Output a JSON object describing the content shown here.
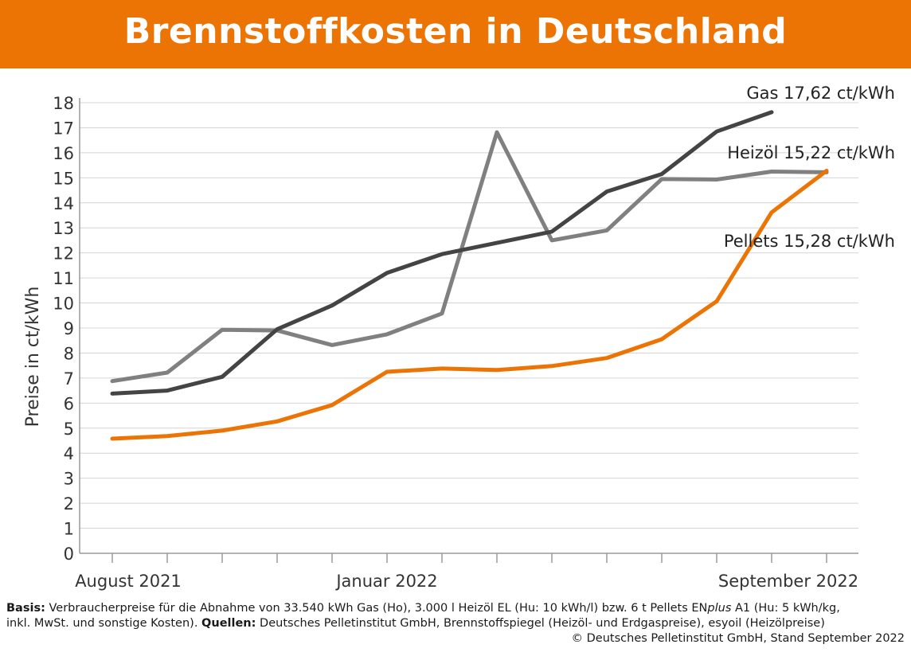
{
  "chart_data": {
    "type": "line",
    "title": "Brennstoffkosten in Deutschland",
    "ylabel": "Preise in ct/kWh",
    "xlabel": "",
    "ylim": [
      0,
      18
    ],
    "yticks": [
      0,
      1,
      2,
      3,
      4,
      5,
      6,
      7,
      8,
      9,
      10,
      11,
      12,
      13,
      14,
      15,
      16,
      17,
      18
    ],
    "x": [
      "2021-08",
      "2021-09",
      "2021-10",
      "2021-11",
      "2021-12",
      "2022-01",
      "2022-02",
      "2022-03",
      "2022-04",
      "2022-05",
      "2022-06",
      "2022-07",
      "2022-08",
      "2022-09"
    ],
    "xtick_labels": [
      {
        "index": 0,
        "label": "August 2021"
      },
      {
        "index": 5,
        "label": "Januar 2022"
      },
      {
        "index": 13,
        "label": "September 2022"
      }
    ],
    "grid": true,
    "series": [
      {
        "name": "Gas",
        "label": "Gas 17,62 ct/kWh",
        "color": "#444444",
        "values": [
          6.38,
          6.5,
          7.05,
          8.95,
          9.9,
          11.2,
          11.95,
          12.4,
          12.85,
          14.45,
          15.15,
          16.85,
          17.62,
          null
        ]
      },
      {
        "name": "Heizöl",
        "label": "Heizöl 15,22 ct/kWh",
        "color": "#808080",
        "values": [
          6.88,
          7.22,
          8.93,
          8.9,
          8.32,
          8.75,
          9.58,
          16.82,
          12.5,
          12.9,
          14.95,
          14.93,
          15.25,
          15.22
        ]
      },
      {
        "name": "Pellets",
        "label": "Pellets 15,28 ct/kWh",
        "color": "#ec7405",
        "values": [
          4.58,
          4.68,
          4.9,
          5.27,
          5.92,
          7.25,
          7.38,
          7.32,
          7.48,
          7.8,
          8.55,
          10.07,
          13.62,
          15.28
        ]
      }
    ]
  },
  "footer": {
    "basis_label": "Basis:",
    "basis_text": " Verbraucherpreise für die Abnahme von 33.540 kWh Gas (Ho), 3.000 l Heizöl EL (Hu: 10 kWh/l) bzw. 6 t Pellets EN",
    "basis_italic": "plus",
    "basis_text2": " A1 (Hu: 5 kWh/kg,",
    "line2_text": "inkl. MwSt. und sonstige Kosten). ",
    "sources_label": "Quellen:",
    "sources_text": " Deutsches Pelletinstitut GmbH, Brennstoffspiegel (Heizöl- und Erdgaspreise), esyoil (Heizölpreise)",
    "copyright": "© Deutsches Pelletinstitut GmbH, Stand September 2022"
  }
}
